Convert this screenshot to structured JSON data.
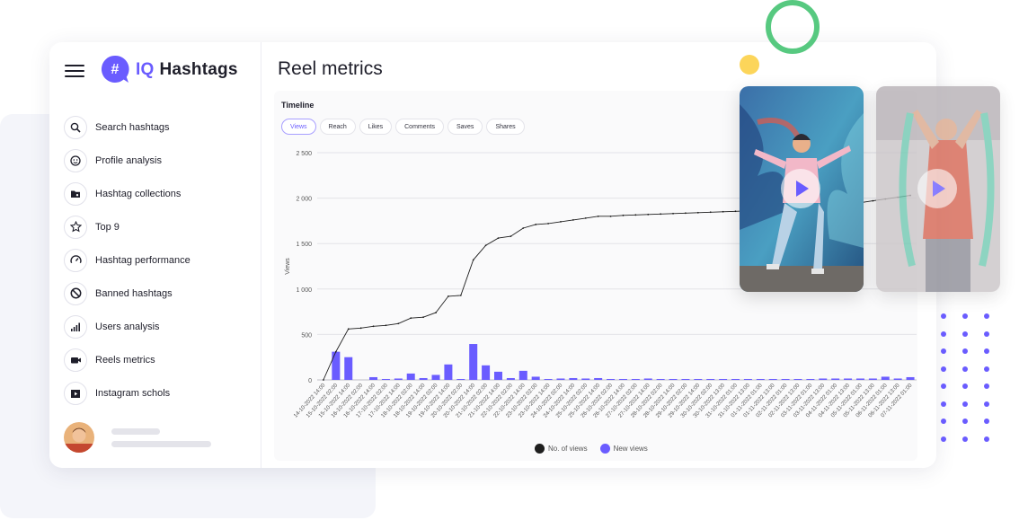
{
  "app": {
    "logo_prefix": "IQ",
    "logo_name": "Hashtags"
  },
  "sidebar": {
    "items": [
      {
        "label": "Search hashtags",
        "icon": "search-icon"
      },
      {
        "label": "Profile analysis",
        "icon": "profile-icon"
      },
      {
        "label": "Hashtag collections",
        "icon": "folder-icon"
      },
      {
        "label": "Top 9",
        "icon": "star-icon"
      },
      {
        "label": "Hashtag performance",
        "icon": "gauge-icon"
      },
      {
        "label": "Banned hashtags",
        "icon": "ban-icon"
      },
      {
        "label": "Users analysis",
        "icon": "bar-chart-icon"
      },
      {
        "label": "Reels metrics",
        "icon": "video-icon"
      },
      {
        "label": "Instagram schols",
        "icon": "play-square-icon"
      }
    ]
  },
  "main": {
    "title": "Reel metrics",
    "section": "Timeline",
    "tabs": [
      "Views",
      "Reach",
      "Likes",
      "Comments",
      "Saves",
      "Shares"
    ],
    "active_tab": "Views"
  },
  "colors": {
    "accent": "#6a5cff",
    "line": "#1e1e1e",
    "ring": "#57c980",
    "yellow": "#fcd55a"
  },
  "chart_data": {
    "type": "bar",
    "ylabel": "Views",
    "xlabel": "",
    "ylim": [
      0,
      2500
    ],
    "yticks": [
      "0",
      "500",
      "1 000",
      "1 500",
      "2 000",
      "2 500"
    ],
    "ytick_values": [
      0,
      500,
      1000,
      1500,
      2000,
      2500
    ],
    "grid": true,
    "legend_position": "bottom",
    "categories": [
      "14-10-2022 14:00",
      "15-10-2022 02:00",
      "15-10-2022 14:00",
      "16-10-2022 02:00",
      "16-10-2022 14:00",
      "17-10-2022 02:00",
      "17-10-2022 14:00",
      "18-10-2022 02:00",
      "18-10-2022 14:00",
      "19-10-2022 02:00",
      "19-10-2022 14:00",
      "20-10-2022 02:00",
      "20-10-2022 14:00",
      "21-10-2022 02:00",
      "21-10-2022 14:00",
      "22-10-2022 02:00",
      "22-10-2022 14:00",
      "23-10-2022 02:00",
      "23-10-2022 14:00",
      "24-10-2022 02:00",
      "24-10-2022 14:00",
      "25-10-2022 02:00",
      "25-10-2022 14:00",
      "26-10-2022 02:00",
      "26-10-2022 14:00",
      "27-10-2022 02:00",
      "27-10-2022 14:00",
      "28-10-2022 02:00",
      "28-10-2022 14:00",
      "29-10-2022 02:00",
      "29-10-2022 14:00",
      "30-10-2022 02:00",
      "30-10-2022 13:00",
      "31-10-2022 01:00",
      "31-10-2022 13:00",
      "01-11-2022 01:00",
      "01-11-2022 13:00",
      "02-11-2022 01:00",
      "02-11-2022 13:00",
      "03-11-2022 01:00",
      "03-11-2022 13:00",
      "04-11-2022 01:00",
      "04-11-2022 13:00",
      "05-11-2022 01:00",
      "05-11-2022 13:00",
      "06-11-2022 01:00",
      "06-11-2022 13:00",
      "07-11-2022 01:00"
    ],
    "series": [
      {
        "name": "No. of views",
        "type": "line",
        "color": "#1e1e1e",
        "values": [
          0,
          310,
          560,
          570,
          590,
          600,
          620,
          680,
          690,
          740,
          920,
          930,
          1320,
          1480,
          1560,
          1580,
          1670,
          1710,
          1720,
          1740,
          1760,
          1780,
          1800,
          1800,
          1810,
          1815,
          1820,
          1825,
          1830,
          1835,
          1840,
          1845,
          1850,
          1855,
          1860,
          1865,
          1870,
          1880,
          1890,
          1900,
          1910,
          1920,
          1930,
          1950,
          1970,
          1990,
          2010,
          2030
        ]
      },
      {
        "name": "New views",
        "type": "bar",
        "color": "#6a5cff",
        "values": [
          0,
          310,
          250,
          0,
          30,
          10,
          15,
          70,
          20,
          55,
          170,
          10,
          395,
          160,
          90,
          20,
          100,
          35,
          10,
          15,
          20,
          15,
          20,
          10,
          10,
          10,
          15,
          10,
          10,
          10,
          10,
          10,
          10,
          10,
          10,
          10,
          10,
          10,
          10,
          10,
          15,
          15,
          15,
          15,
          15,
          35,
          15,
          30
        ]
      }
    ]
  }
}
